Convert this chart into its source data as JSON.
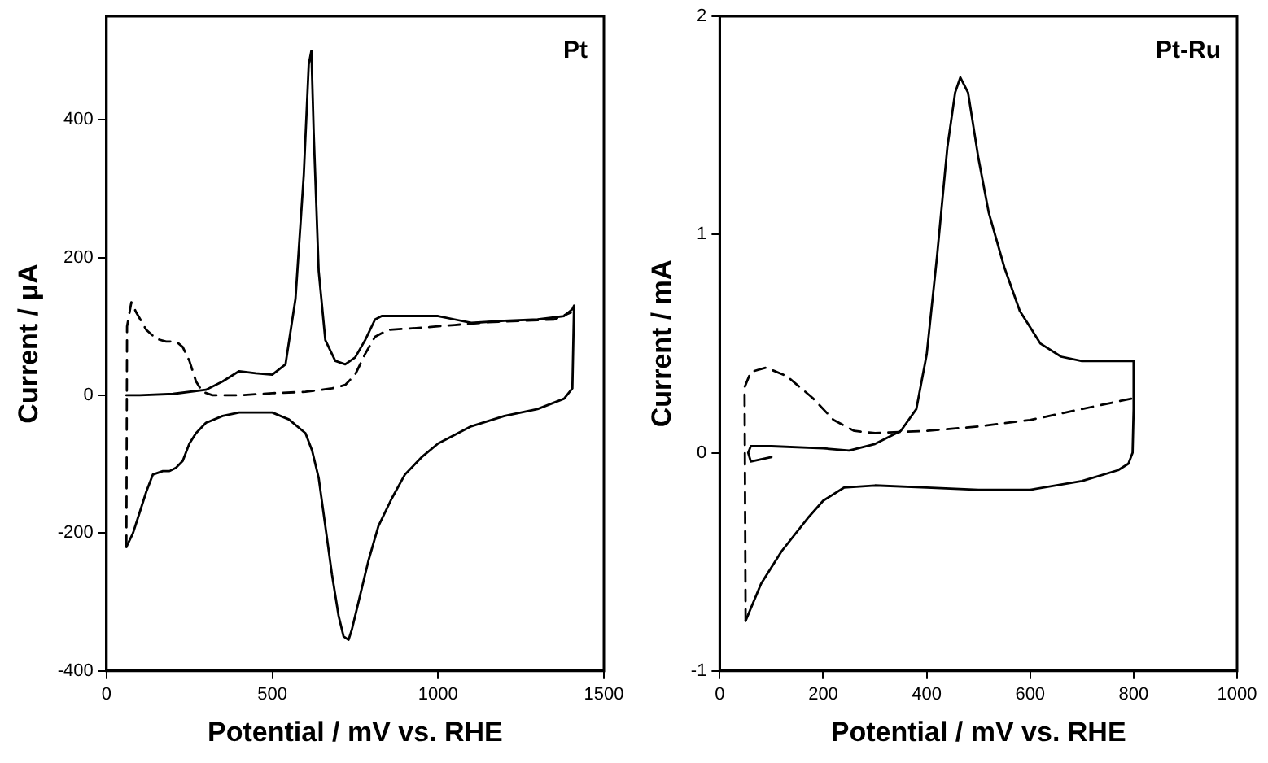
{
  "chart_data": [
    {
      "type": "line",
      "xlabel": "Potential / mV vs. RHE",
      "ylabel": "Current / μA",
      "annotations": [
        "Pt"
      ],
      "xlim": [
        0,
        1500
      ],
      "ylim": [
        -400,
        550
      ],
      "xticks": [
        0,
        500,
        1000,
        1500
      ],
      "yticks": [
        -400,
        -200,
        0,
        200,
        400
      ],
      "grid": false,
      "legend": false,
      "marker": "none",
      "series": [
        {
          "color": "#000000",
          "line_style": "solid",
          "x": [
            60,
            100,
            200,
            300,
            350,
            400,
            450,
            500,
            540,
            570,
            595,
            610,
            618,
            625,
            640,
            660,
            690,
            720,
            750,
            780,
            810,
            830,
            900,
            1000,
            1050,
            1100,
            1200,
            1300,
            1380,
            1405,
            1410,
            1405,
            1380,
            1300,
            1200,
            1100,
            1000,
            950,
            900,
            860,
            820,
            790,
            760,
            740,
            730,
            715,
            700,
            680,
            660,
            640,
            620,
            600,
            550,
            500,
            450,
            400,
            350,
            300,
            270,
            250,
            230,
            210,
            190,
            170,
            140,
            120,
            100,
            80,
            60
          ],
          "values": [
            0,
            0,
            2,
            8,
            20,
            35,
            32,
            30,
            45,
            140,
            320,
            480,
            500,
            380,
            180,
            80,
            50,
            45,
            55,
            80,
            110,
            115,
            115,
            115,
            110,
            105,
            108,
            110,
            115,
            125,
            130,
            10,
            -5,
            -20,
            -30,
            -45,
            -70,
            -90,
            -115,
            -150,
            -190,
            -240,
            -300,
            -340,
            -355,
            -350,
            -320,
            -260,
            -190,
            -120,
            -80,
            -55,
            -35,
            -25,
            -25,
            -25,
            -30,
            -40,
            -55,
            -70,
            -95,
            -105,
            -110,
            -110,
            -115,
            -140,
            -170,
            -200,
            -220
          ]
        },
        {
          "color": "#000000",
          "line_style": "dashed",
          "x": [
            60,
            62,
            75,
            90,
            120,
            150,
            180,
            210,
            230,
            250,
            270,
            290,
            320,
            400,
            500,
            600,
            680,
            720,
            750,
            780,
            810,
            850,
            950,
            1050,
            1150,
            1250,
            1350,
            1400
          ],
          "values": [
            -220,
            100,
            135,
            120,
            95,
            82,
            78,
            78,
            70,
            50,
            20,
            5,
            0,
            0,
            3,
            5,
            10,
            15,
            30,
            60,
            85,
            95,
            98,
            102,
            106,
            108,
            110,
            120
          ]
        }
      ]
    },
    {
      "type": "line",
      "xlabel": "Potential / mV vs. RHE",
      "ylabel": "Current / mA",
      "annotations": [
        "Pt-Ru"
      ],
      "xlim": [
        0,
        1000
      ],
      "ylim": [
        -1,
        2
      ],
      "xticks": [
        0,
        200,
        400,
        600,
        800,
        1000
      ],
      "yticks": [
        -1,
        0,
        1,
        2
      ],
      "grid": false,
      "legend": false,
      "marker": "none",
      "series": [
        {
          "color": "#000000",
          "line_style": "solid",
          "x": [
            100,
            60,
            55,
            60,
            100,
            200,
            250,
            300,
            350,
            380,
            400,
            420,
            440,
            455,
            465,
            480,
            500,
            520,
            550,
            580,
            620,
            660,
            700,
            800,
            800,
            798,
            790,
            770,
            700,
            600,
            500,
            400,
            300,
            240,
            200,
            170,
            120,
            80,
            50
          ],
          "values": [
            -0.02,
            -0.04,
            0,
            0.03,
            0.03,
            0.02,
            0.01,
            0.04,
            0.1,
            0.2,
            0.45,
            0.9,
            1.4,
            1.65,
            1.72,
            1.65,
            1.35,
            1.1,
            0.85,
            0.65,
            0.5,
            0.44,
            0.42,
            0.42,
            0.2,
            0,
            -0.05,
            -0.08,
            -0.13,
            -0.17,
            -0.17,
            -0.16,
            -0.15,
            -0.16,
            -0.22,
            -0.3,
            -0.45,
            -0.6,
            -0.77
          ]
        },
        {
          "color": "#000000",
          "line_style": "dashed",
          "x": [
            50,
            48,
            60,
            90,
            130,
            180,
            220,
            260,
            300,
            400,
            500,
            600,
            700,
            800
          ],
          "values": [
            -0.77,
            0.3,
            0.37,
            0.39,
            0.35,
            0.25,
            0.15,
            0.1,
            0.09,
            0.1,
            0.12,
            0.15,
            0.2,
            0.25
          ]
        }
      ]
    }
  ]
}
